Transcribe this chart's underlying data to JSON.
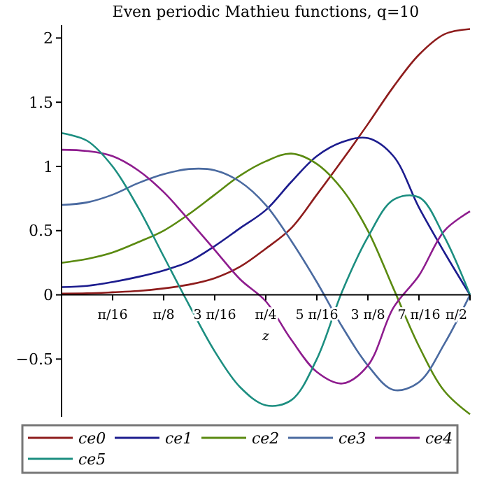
{
  "chart_data": {
    "type": "line",
    "title": "Even periodic Mathieu functions, q=10",
    "xlabel": "z",
    "x": [
      0,
      0.0982,
      0.1963,
      0.2945,
      0.3927,
      0.4909,
      0.589,
      0.6872,
      0.7854,
      0.8836,
      0.9817,
      1.0799,
      1.1781,
      1.2763,
      1.3744,
      1.4726,
      1.5708
    ],
    "series": [
      {
        "name": "ce0",
        "color": "#8e1c1c",
        "values": [
          0.01,
          0.012,
          0.02,
          0.03,
          0.05,
          0.08,
          0.13,
          0.22,
          0.36,
          0.52,
          0.78,
          1.05,
          1.33,
          1.62,
          1.87,
          2.03,
          2.07
        ]
      },
      {
        "name": "ce1",
        "color": "#1c1c8e",
        "values": [
          0.06,
          0.07,
          0.1,
          0.14,
          0.19,
          0.26,
          0.38,
          0.52,
          0.66,
          0.88,
          1.08,
          1.19,
          1.22,
          1.08,
          0.68,
          0.33,
          0
        ]
      },
      {
        "name": "ce2",
        "color": "#5a8a10",
        "values": [
          0.25,
          0.28,
          0.33,
          0.41,
          0.5,
          0.63,
          0.78,
          0.93,
          1.04,
          1.1,
          1.02,
          0.82,
          0.5,
          0.05,
          -0.4,
          -0.75,
          -0.93
        ]
      },
      {
        "name": "ce3",
        "color": "#4a6aa0",
        "values": [
          0.7,
          0.72,
          0.78,
          0.87,
          0.94,
          0.98,
          0.97,
          0.88,
          0.7,
          0.42,
          0.1,
          -0.25,
          -0.55,
          -0.74,
          -0.68,
          -0.38,
          0
        ]
      },
      {
        "name": "ce4",
        "color": "#8e1c8e",
        "values": [
          1.13,
          1.12,
          1.08,
          0.97,
          0.8,
          0.58,
          0.35,
          0.12,
          -0.05,
          -0.35,
          -0.6,
          -0.69,
          -0.55,
          -0.1,
          0.15,
          0.5,
          0.65
        ]
      },
      {
        "name": "ce5",
        "color": "#1c8e80",
        "values": [
          1.26,
          1.2,
          1.0,
          0.68,
          0.3,
          -0.08,
          -0.44,
          -0.72,
          -0.86,
          -0.82,
          -0.5,
          0.03,
          0.45,
          0.74,
          0.76,
          0.45,
          0
        ]
      }
    ],
    "xlim": [
      0,
      1.5708
    ],
    "ylim": [
      -0.95,
      2.1
    ],
    "xticks": [
      {
        "value": 0.19635,
        "label": "π/16"
      },
      {
        "value": 0.3927,
        "label": "π/8"
      },
      {
        "value": 0.58905,
        "label": "3 π/16"
      },
      {
        "value": 0.7854,
        "label": "π/4"
      },
      {
        "value": 0.98175,
        "label": "5 π/16"
      },
      {
        "value": 1.1781,
        "label": "3 π/8"
      },
      {
        "value": 1.37445,
        "label": "7 π/16"
      },
      {
        "value": 1.5708,
        "label": "π/2"
      }
    ],
    "yticks": [
      {
        "value": -0.5,
        "label": "−0.5"
      },
      {
        "value": 0,
        "label": "0"
      },
      {
        "value": 0.5,
        "label": "0.5"
      },
      {
        "value": 1,
        "label": "1"
      },
      {
        "value": 1.5,
        "label": "1.5"
      },
      {
        "value": 2,
        "label": "2"
      }
    ],
    "legend": "bottom",
    "grid": false,
    "marker": "none",
    "line_style": "solid"
  }
}
